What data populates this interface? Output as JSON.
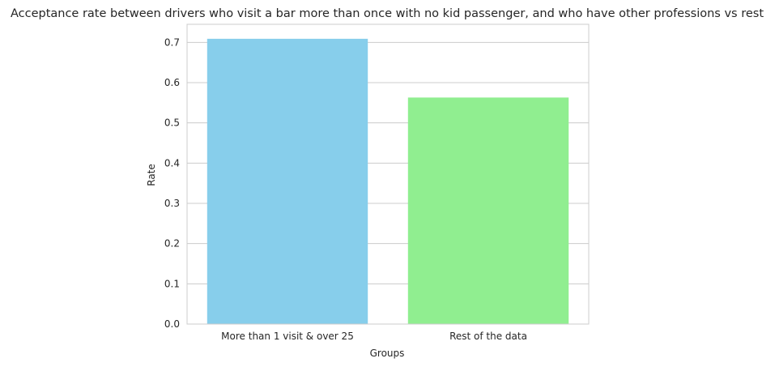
{
  "chart_data": {
    "type": "bar",
    "title": "Acceptance rate between drivers who visit a bar more than once with no kid passenger, and who have other professions vs rest",
    "xlabel": "Groups",
    "ylabel": "Rate",
    "categories": [
      "More than 1 visit & over 25",
      "Rest of the data"
    ],
    "values": [
      0.709,
      0.563
    ],
    "colors": [
      "#87ceeb",
      "#90ee90"
    ],
    "ylim": [
      0,
      0.745
    ],
    "yticks": [
      0.0,
      0.1,
      0.2,
      0.3,
      0.4,
      0.5,
      0.6,
      0.7
    ],
    "ytick_labels": [
      "0.0",
      "0.1",
      "0.2",
      "0.3",
      "0.4",
      "0.5",
      "0.6",
      "0.7"
    ],
    "grid": true,
    "grid_axis": "y"
  }
}
